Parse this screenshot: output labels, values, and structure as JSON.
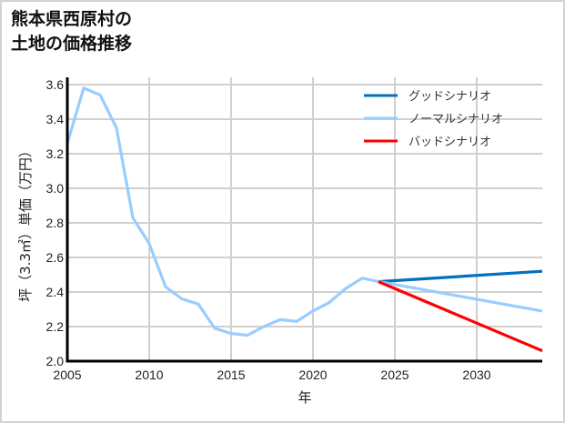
{
  "title": {
    "line1": "熊本県西原村の",
    "line2": "土地の価格推移"
  },
  "chart_data": {
    "type": "line",
    "title": "熊本県西原村の土地の価格推移",
    "xlabel": "年",
    "ylabel": "坪（3.3㎡）単価（万円）",
    "xlim": [
      2005,
      2034
    ],
    "ylim": [
      2.0,
      3.65
    ],
    "xticks": [
      2005,
      2010,
      2015,
      2020,
      2025,
      2030
    ],
    "yticks": [
      2.0,
      2.2,
      2.4,
      2.6,
      2.8,
      3.0,
      3.2,
      3.4,
      3.6
    ],
    "grid": true,
    "legend_position": "upper right",
    "series": [
      {
        "name": "グッドシナリオ",
        "color": "#0070c0",
        "x": [
          2024,
          2034
        ],
        "values": [
          2.46,
          2.52
        ]
      },
      {
        "name": "ノーマルシナリオ",
        "color": "#99ccff",
        "x": [
          2005,
          2006,
          2007,
          2008,
          2009,
          2010,
          2011,
          2012,
          2013,
          2014,
          2015,
          2016,
          2017,
          2018,
          2019,
          2020,
          2021,
          2022,
          2023,
          2024,
          2034
        ],
        "values": [
          3.26,
          3.58,
          3.54,
          3.35,
          2.83,
          2.68,
          2.43,
          2.36,
          2.33,
          2.19,
          2.16,
          2.15,
          2.2,
          2.24,
          2.23,
          2.29,
          2.34,
          2.42,
          2.48,
          2.46,
          2.29
        ]
      },
      {
        "name": "バッドシナリオ",
        "color": "#ff0000",
        "x": [
          2024,
          2034
        ],
        "values": [
          2.46,
          2.06
        ]
      }
    ]
  }
}
